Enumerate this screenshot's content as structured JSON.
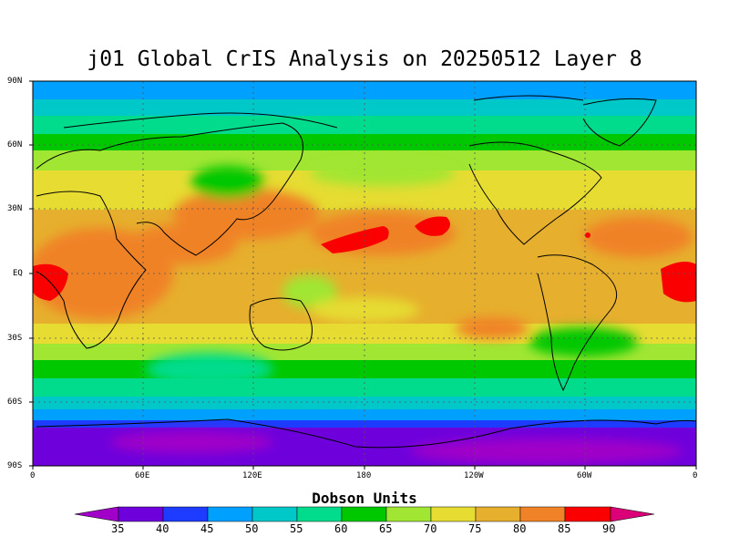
{
  "title": "j01 Global CrIS Analysis on 20250512 Layer 8",
  "lat_ticks": [
    "90N",
    "60N",
    "30N",
    "EQ",
    "30S",
    "60S",
    "90S"
  ],
  "lon_ticks": [
    "0",
    "60E",
    "120E",
    "180",
    "120W",
    "60W",
    "0"
  ],
  "colorbar": {
    "label": "Dobson Units",
    "values": [
      "35",
      "40",
      "45",
      "50",
      "55",
      "60",
      "65",
      "70",
      "75",
      "80",
      "85",
      "90"
    ],
    "colors": [
      "#a000c8",
      "#6e00dc",
      "#1e3cff",
      "#00a0ff",
      "#00c8c8",
      "#00dc8c",
      "#00c800",
      "#a0e632",
      "#e6dc32",
      "#e6af2d",
      "#f08228",
      "#fa0000",
      "#dc0078"
    ]
  }
}
